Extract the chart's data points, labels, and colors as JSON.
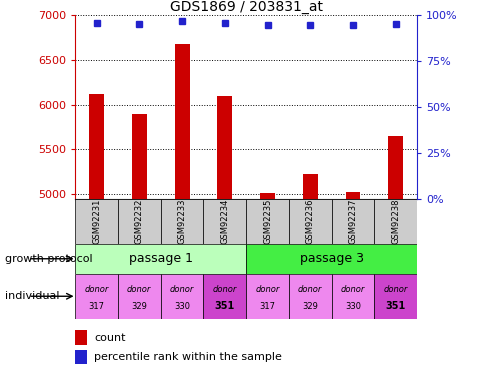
{
  "title": "GDS1869 / 203831_at",
  "samples": [
    "GSM92231",
    "GSM92232",
    "GSM92233",
    "GSM92234",
    "GSM92235",
    "GSM92236",
    "GSM92237",
    "GSM92238"
  ],
  "count_values": [
    6120,
    5890,
    6680,
    6100,
    5010,
    5225,
    5020,
    5650
  ],
  "percentile_values": [
    95.5,
    95.0,
    96.5,
    95.5,
    94.5,
    94.5,
    94.5,
    95.0
  ],
  "ylim_left": [
    4950,
    7000
  ],
  "ylim_right": [
    0,
    100
  ],
  "yticks_left": [
    5000,
    5500,
    6000,
    6500,
    7000
  ],
  "yticks_right": [
    0,
    25,
    50,
    75,
    100
  ],
  "bar_color": "#cc0000",
  "dot_color": "#2222cc",
  "passage_groups": [
    {
      "label": "passage 1",
      "indices": [
        0,
        1,
        2,
        3
      ],
      "color": "#bbffbb"
    },
    {
      "label": "passage 3",
      "indices": [
        4,
        5,
        6,
        7
      ],
      "color": "#44ee44"
    }
  ],
  "individual_labels_top": [
    "donor",
    "donor",
    "donor",
    "donor",
    "donor",
    "donor",
    "donor",
    "donor"
  ],
  "individual_labels_bot": [
    "317",
    "329",
    "330",
    "351",
    "317",
    "329",
    "330",
    "351"
  ],
  "individual_bold": [
    false,
    false,
    false,
    true,
    false,
    false,
    false,
    true
  ],
  "individual_color": "#ee88ee",
  "individual_bold_color": "#cc44cc",
  "xlabel_growth": "growth protocol",
  "xlabel_individual": "individual",
  "legend_count": "count",
  "legend_percentile": "percentile rank within the sample",
  "grid_color": "#000000",
  "sample_box_color": "#cccccc",
  "left_axis_color": "#cc0000",
  "right_axis_color": "#2222cc",
  "bar_width": 0.35
}
